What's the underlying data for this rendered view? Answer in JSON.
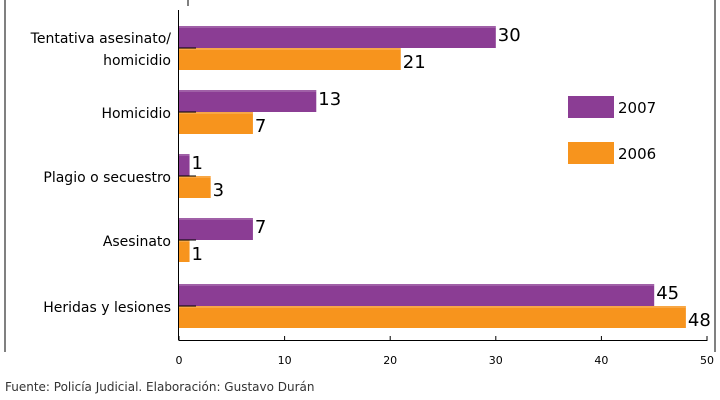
{
  "chart_data": {
    "type": "bar",
    "orientation": "horizontal",
    "title": "",
    "xlabel": "",
    "ylabel": "",
    "categories": [
      [
        "Tentativa asesinato/",
        "homicidio"
      ],
      [
        "Homicidio"
      ],
      [
        "Plagio o secuestro"
      ],
      [
        "Asesinato"
      ],
      [
        "Heridas y lesiones"
      ]
    ],
    "series": [
      {
        "name": "2007",
        "color": "#8b3d94",
        "values": [
          30,
          13,
          1,
          7,
          45
        ]
      },
      {
        "name": "2006",
        "color": "#f7941d",
        "values": [
          21,
          7,
          3,
          1,
          48
        ]
      }
    ],
    "xlim": [
      0,
      50
    ],
    "xticks": [
      0,
      10,
      20,
      30,
      40,
      50
    ],
    "grid": false,
    "legend_position": "right"
  },
  "source": "Fuente: Policía Judicial. Elaboración: Gustavo Durán"
}
